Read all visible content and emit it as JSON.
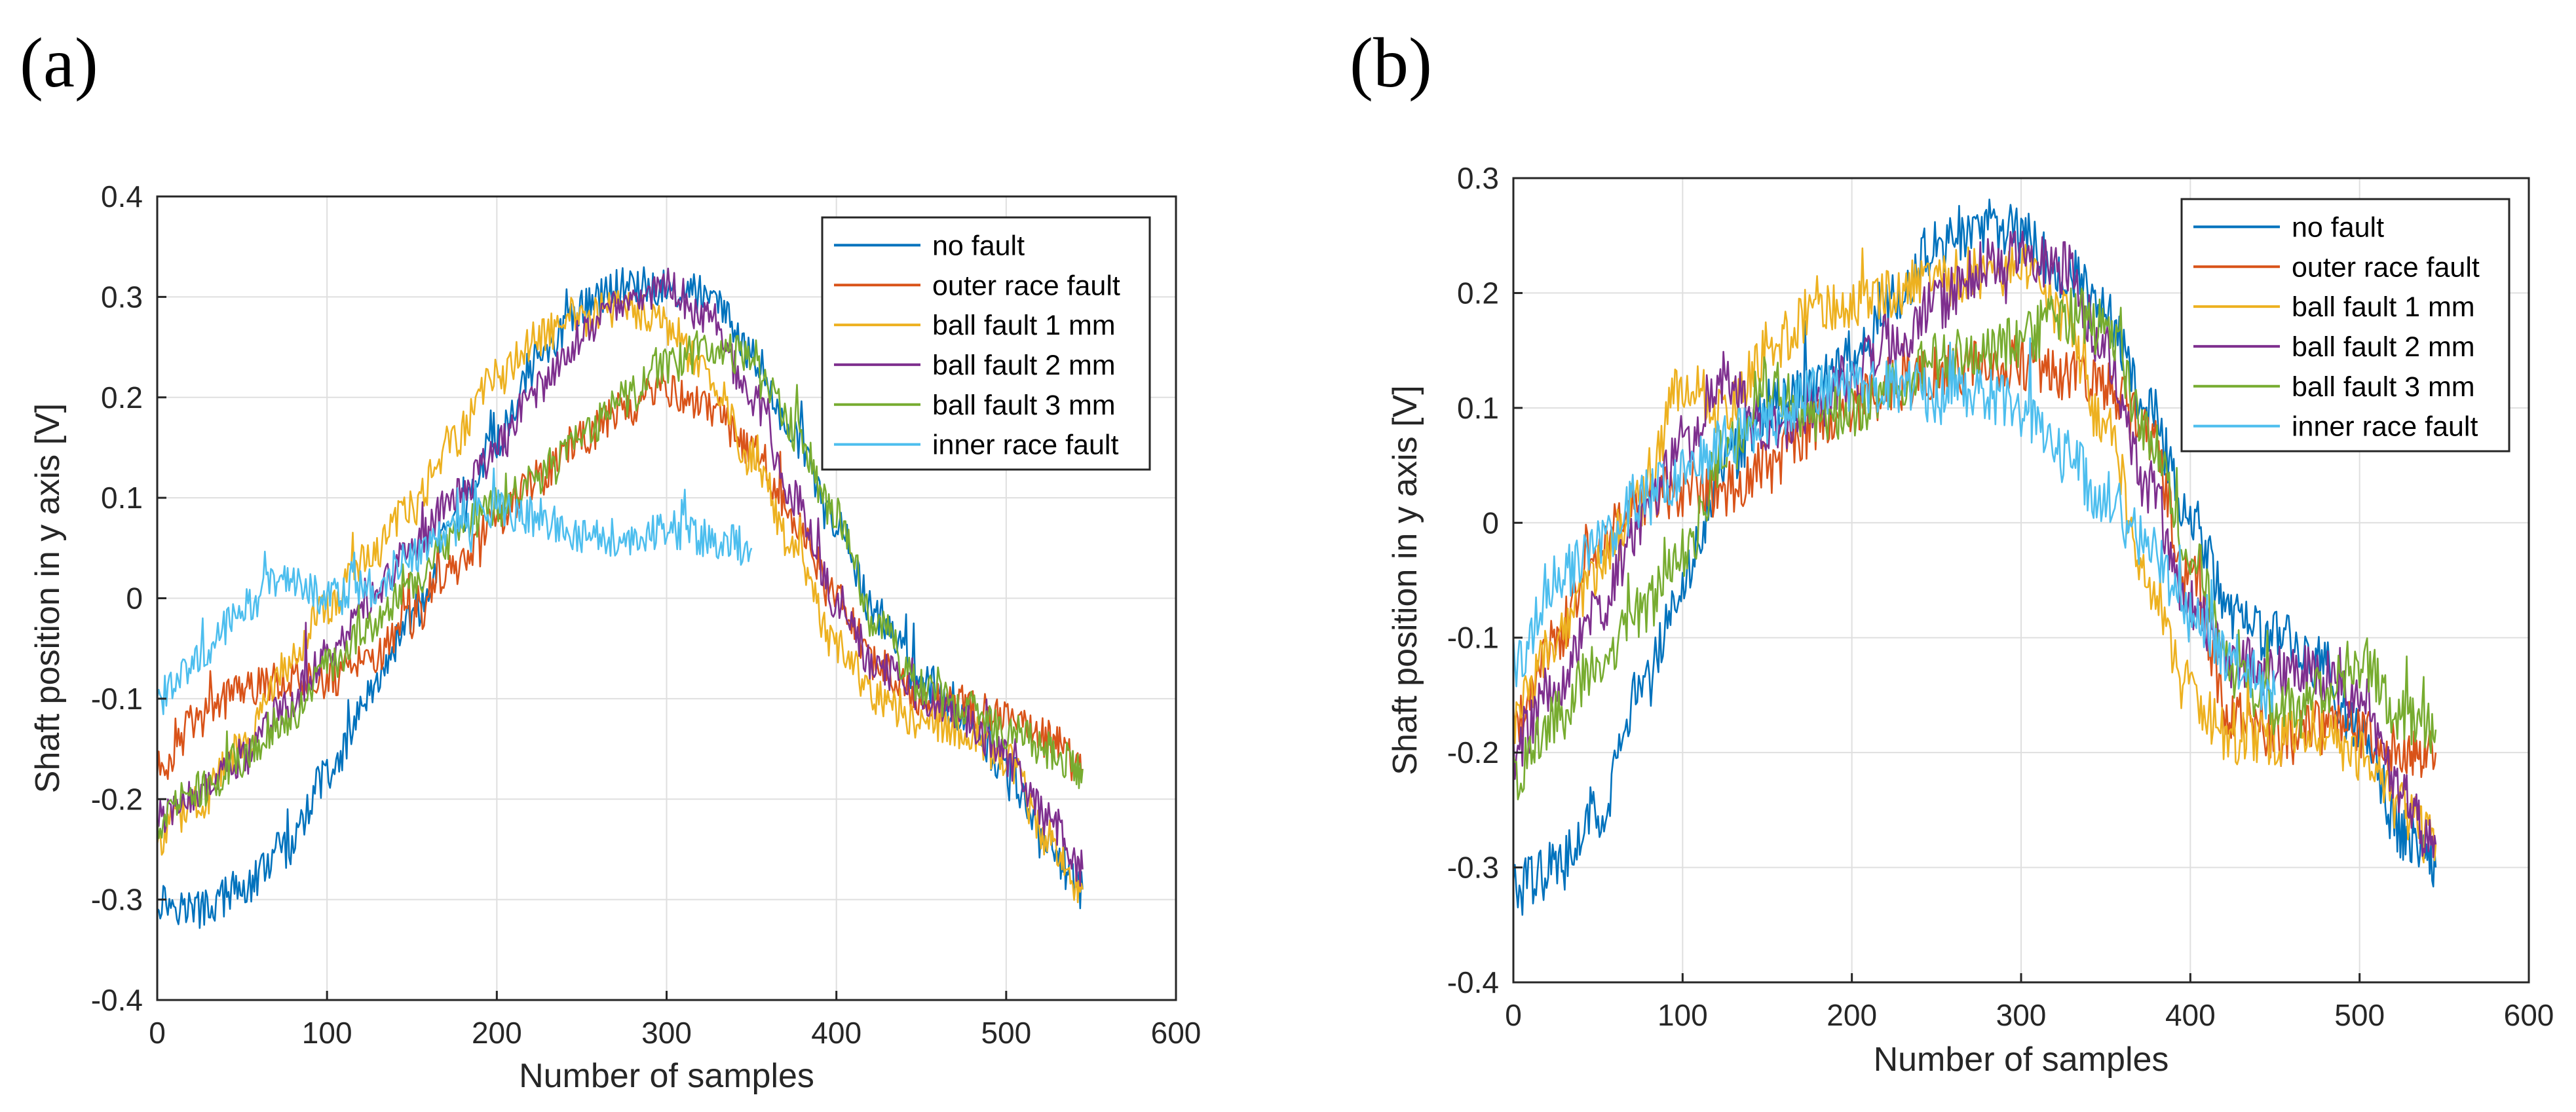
{
  "figure": {
    "panels": [
      "(a)",
      "(b)"
    ]
  },
  "chart_data": [
    {
      "type": "line",
      "panel_label": "(a)",
      "xlabel": "Number of samples",
      "ylabel": "Shaft position in y axis [V]",
      "xlim": [
        0,
        600
      ],
      "ylim": [
        -0.4,
        0.4
      ],
      "xticks": [
        0,
        100,
        200,
        300,
        400,
        500,
        600
      ],
      "yticks": [
        -0.4,
        -0.3,
        -0.2,
        -0.1,
        0,
        0.1,
        0.2,
        0.3,
        0.4
      ],
      "grid": true,
      "legend_position": "top-right",
      "x": [
        0,
        25,
        50,
        75,
        100,
        125,
        150,
        175,
        200,
        225,
        250,
        275,
        300,
        325,
        350,
        375,
        400,
        425,
        450,
        475,
        500,
        525,
        545
      ],
      "noise": 0.02,
      "series": [
        {
          "name": "no fault",
          "color": "#0072BD",
          "values": [
            -0.3,
            -0.31,
            -0.29,
            -0.25,
            -0.18,
            -0.1,
            -0.02,
            0.07,
            0.16,
            0.24,
            0.29,
            0.31,
            0.31,
            0.3,
            0.24,
            0.16,
            0.07,
            -0.02,
            -0.08,
            -0.12,
            -0.17,
            -0.25,
            -0.29
          ]
        },
        {
          "name": "outer race fault",
          "color": "#D95319",
          "values": [
            -0.17,
            -0.12,
            -0.09,
            -0.08,
            -0.08,
            -0.06,
            -0.02,
            0.03,
            0.08,
            0.12,
            0.16,
            0.19,
            0.21,
            0.19,
            0.15,
            0.08,
            0.0,
            -0.07,
            -0.1,
            -0.11,
            -0.12,
            -0.14,
            -0.17
          ]
        },
        {
          "name": "ball fault 1 mm",
          "color": "#EDB120",
          "values": [
            -0.24,
            -0.2,
            -0.15,
            -0.07,
            -0.01,
            0.04,
            0.09,
            0.16,
            0.22,
            0.26,
            0.28,
            0.29,
            0.27,
            0.22,
            0.14,
            0.05,
            -0.05,
            -0.1,
            -0.12,
            -0.13,
            -0.16,
            -0.24,
            -0.29
          ]
        },
        {
          "name": "ball fault 2 mm",
          "color": "#7E2F8E",
          "values": [
            -0.22,
            -0.19,
            -0.16,
            -0.11,
            -0.06,
            0.0,
            0.05,
            0.1,
            0.15,
            0.21,
            0.26,
            0.3,
            0.31,
            0.28,
            0.2,
            0.1,
            0.0,
            -0.07,
            -0.1,
            -0.12,
            -0.16,
            -0.22,
            -0.27
          ]
        },
        {
          "name": "ball fault 3 mm",
          "color": "#77AC30",
          "values": [
            -0.22,
            -0.19,
            -0.16,
            -0.12,
            -0.07,
            -0.03,
            0.02,
            0.06,
            0.09,
            0.12,
            0.16,
            0.2,
            0.23,
            0.25,
            0.24,
            0.17,
            0.08,
            -0.03,
            -0.09,
            -0.11,
            -0.13,
            -0.15,
            -0.17
          ]
        },
        {
          "name": "inner race fault",
          "color": "#4DBEEE",
          "values": [
            -0.1,
            -0.06,
            -0.01,
            0.02,
            0.0,
            0.01,
            0.04,
            0.07,
            0.09,
            0.08,
            0.06,
            0.06,
            0.07,
            0.06,
            0.05,
            null,
            null,
            null,
            null,
            null,
            null,
            null,
            null
          ]
        }
      ]
    },
    {
      "type": "line",
      "panel_label": "(b)",
      "xlabel": "Number of samples",
      "ylabel": "Shaft position in y axis [V]",
      "xlim": [
        0,
        600
      ],
      "ylim": [
        -0.4,
        0.3
      ],
      "xticks": [
        0,
        100,
        200,
        300,
        400,
        500,
        600
      ],
      "yticks": [
        -0.4,
        -0.3,
        -0.2,
        -0.1,
        0,
        0.1,
        0.2,
        0.3
      ],
      "grid": true,
      "legend_position": "top-right",
      "x": [
        0,
        25,
        50,
        75,
        100,
        125,
        150,
        175,
        200,
        225,
        250,
        275,
        300,
        325,
        350,
        375,
        400,
        425,
        450,
        475,
        500,
        525,
        545
      ],
      "noise": 0.025,
      "series": [
        {
          "name": "no fault",
          "color": "#0072BD",
          "values": [
            -0.32,
            -0.3,
            -0.25,
            -0.15,
            -0.05,
            0.05,
            0.1,
            0.11,
            0.15,
            0.2,
            0.24,
            0.26,
            0.25,
            0.22,
            0.18,
            0.1,
            0.0,
            -0.08,
            -0.1,
            -0.12,
            -0.18,
            -0.27,
            -0.3
          ]
        },
        {
          "name": "outer race fault",
          "color": "#D95319",
          "values": [
            -0.18,
            -0.1,
            -0.02,
            0.02,
            0.03,
            0.03,
            0.05,
            0.08,
            0.1,
            0.12,
            0.13,
            0.14,
            0.14,
            0.13,
            0.12,
            0.08,
            -0.05,
            -0.17,
            -0.19,
            -0.18,
            -0.18,
            -0.2,
            -0.2
          ]
        },
        {
          "name": "ball fault 1 mm",
          "color": "#EDB120",
          "values": [
            -0.17,
            -0.1,
            -0.04,
            0.02,
            0.12,
            0.1,
            0.15,
            0.18,
            0.19,
            0.2,
            0.21,
            0.22,
            0.22,
            0.18,
            0.08,
            -0.05,
            -0.15,
            -0.19,
            -0.19,
            -0.18,
            -0.2,
            -0.25,
            -0.28
          ]
        },
        {
          "name": "ball fault 2 mm",
          "color": "#7E2F8E",
          "values": [
            -0.2,
            -0.14,
            -0.08,
            0.0,
            0.07,
            0.13,
            0.08,
            0.1,
            0.13,
            0.16,
            0.19,
            0.22,
            0.24,
            0.22,
            0.15,
            0.03,
            -0.07,
            -0.12,
            -0.13,
            -0.13,
            -0.15,
            -0.24,
            -0.28
          ]
        },
        {
          "name": "ball fault 3 mm",
          "color": "#77AC30",
          "values": [
            -0.22,
            -0.17,
            -0.12,
            -0.08,
            -0.03,
            0.06,
            0.12,
            0.09,
            0.1,
            0.12,
            0.14,
            0.15,
            0.16,
            0.18,
            0.17,
            0.08,
            -0.03,
            -0.13,
            -0.16,
            -0.15,
            -0.12,
            -0.17,
            -0.18
          ]
        },
        {
          "name": "inner race fault",
          "color": "#4DBEEE",
          "values": [
            -0.12,
            -0.05,
            -0.02,
            0.02,
            0.04,
            0.07,
            0.09,
            0.11,
            0.12,
            0.12,
            0.11,
            0.11,
            0.1,
            0.06,
            0.02,
            -0.02,
            -0.08,
            -0.12,
            -0.15,
            null,
            null,
            null,
            null
          ]
        }
      ]
    }
  ]
}
